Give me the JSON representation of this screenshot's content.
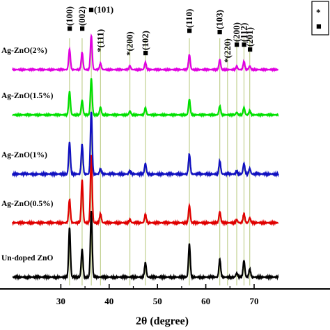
{
  "chart_data": {
    "type": "line",
    "title": "",
    "xlabel": "2θ (degree)",
    "ylabel": "",
    "xlim": [
      20,
      75
    ],
    "x_ticks": [
      30,
      40,
      50,
      60,
      70
    ],
    "x_tick_labels": [
      "30",
      "40",
      "50",
      "60",
      "70"
    ],
    "legend_partial": [
      "*",
      "■"
    ],
    "series": [
      {
        "name": "Un-doped ZnO",
        "color": "#000000",
        "ag_peaks": false,
        "peaks": [
          [
            31.8,
            0.75
          ],
          [
            34.4,
            0.42
          ],
          [
            36.3,
            1.0
          ],
          [
            47.5,
            0.22
          ],
          [
            56.6,
            0.5
          ],
          [
            62.9,
            0.27
          ],
          [
            66.4,
            0.06
          ],
          [
            67.9,
            0.25
          ],
          [
            69.1,
            0.12
          ]
        ]
      },
      {
        "name": "Ag-ZnO(0.5%)",
        "color": "#e00000",
        "ag_peaks": true,
        "peaks": [
          [
            31.8,
            0.38
          ],
          [
            34.4,
            0.7
          ],
          [
            36.3,
            1.1
          ],
          [
            38.2,
            0.15
          ],
          [
            44.3,
            0.05
          ],
          [
            47.5,
            0.14
          ],
          [
            56.6,
            0.28
          ],
          [
            62.9,
            0.18
          ],
          [
            66.4,
            0.05
          ],
          [
            67.9,
            0.15
          ],
          [
            69.1,
            0.08
          ]
        ]
      },
      {
        "name": "Ag-ZnO(1%)",
        "color": "#1010c0",
        "ag_peaks": true,
        "peaks": [
          [
            31.8,
            0.48
          ],
          [
            34.4,
            0.45
          ],
          [
            36.3,
            0.95
          ],
          [
            38.2,
            0.08
          ],
          [
            44.3,
            0.05
          ],
          [
            47.5,
            0.16
          ],
          [
            56.6,
            0.3
          ],
          [
            62.9,
            0.2
          ],
          [
            66.4,
            0.04
          ],
          [
            67.9,
            0.16
          ],
          [
            69.1,
            0.08
          ]
        ]
      },
      {
        "name": "Ag-ZnO(1.5%)",
        "color": "#00e000",
        "ag_peaks": true,
        "peaks": [
          [
            31.8,
            0.48
          ],
          [
            34.4,
            0.3
          ],
          [
            36.3,
            0.75
          ],
          [
            38.2,
            0.16
          ],
          [
            44.3,
            0.08
          ],
          [
            47.5,
            0.14
          ],
          [
            56.6,
            0.32
          ],
          [
            62.9,
            0.18
          ],
          [
            66.4,
            0.05
          ],
          [
            67.9,
            0.15
          ],
          [
            69.1,
            0.08
          ]
        ]
      },
      {
        "name": "Ag-ZnO(2%)",
        "color": "#e000e0",
        "ag_peaks": true,
        "peaks": [
          [
            31.8,
            0.45
          ],
          [
            34.4,
            0.38
          ],
          [
            36.3,
            0.75
          ],
          [
            38.2,
            0.14
          ],
          [
            44.3,
            0.08
          ],
          [
            47.5,
            0.16
          ],
          [
            56.6,
            0.33
          ],
          [
            62.9,
            0.22
          ],
          [
            66.4,
            0.07
          ],
          [
            67.9,
            0.18
          ],
          [
            69.1,
            0.08
          ]
        ]
      }
    ],
    "annotations": [
      {
        "x": 31.8,
        "text": "■(100)"
      },
      {
        "x": 34.4,
        "text": "■(002)"
      },
      {
        "x": 36.3,
        "text": "■(101)"
      },
      {
        "x": 38.2,
        "text": "*(111)"
      },
      {
        "x": 44.3,
        "text": "*(200)"
      },
      {
        "x": 47.5,
        "text": "■(102)"
      },
      {
        "x": 56.6,
        "text": "■(110)"
      },
      {
        "x": 62.9,
        "text": "■(103)"
      },
      {
        "x": 64.5,
        "text": "*(220)"
      },
      {
        "x": 66.4,
        "text": "■(200)"
      },
      {
        "x": 67.9,
        "text": "■(112)"
      },
      {
        "x": 69.1,
        "text": "■(201)"
      }
    ],
    "reference_lines_x": [
      31.8,
      34.4,
      36.3,
      38.2,
      44.3,
      47.5,
      56.6,
      62.9,
      64.5,
      66.4,
      67.9,
      69.1
    ]
  }
}
